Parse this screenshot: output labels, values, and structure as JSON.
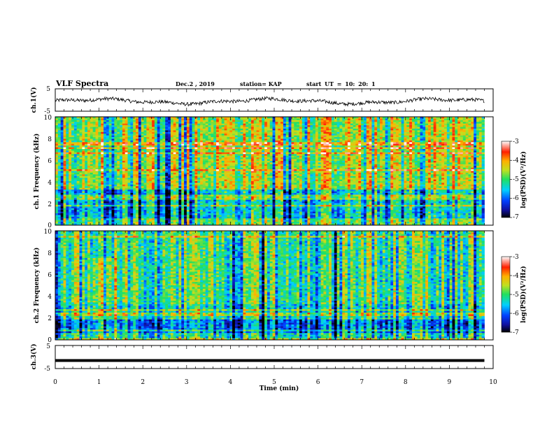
{
  "header": {
    "title": "VLF Spectra",
    "date": "Dec.2 , 2019",
    "station": "station= KAP",
    "start": "start UT = 10: 20: 1"
  },
  "colors": {
    "ink": "#000000",
    "background": "#ffffff"
  },
  "chart_data": [
    {
      "type": "line",
      "name": "ch1-waveform",
      "ylabel": "ch.1(V)",
      "ylim": [
        -5,
        5
      ],
      "yticks": [
        "5",
        "-5"
      ],
      "xlim": [
        0,
        10
      ],
      "description_values": "noisy waveform oscillating roughly between -2 and 1 V"
    },
    {
      "type": "heatmap",
      "name": "ch1-spectrogram",
      "ylabel": "ch.1 Frequency (kHz)",
      "ylim": [
        0,
        10
      ],
      "yticks": [
        "0",
        "2",
        "4",
        "6",
        "8",
        "10"
      ],
      "xlim": [
        0,
        9.8
      ],
      "colorbar": {
        "label": "log(PSD)(V²/Hz)",
        "range": [
          -7,
          -3
        ],
        "ticks": [
          "-3",
          "-4",
          "-5",
          "-6",
          "-7"
        ]
      }
    },
    {
      "type": "heatmap",
      "name": "ch2-spectrogram",
      "ylabel": "ch.2 Frequency (kHz)",
      "ylim": [
        0,
        10
      ],
      "yticks": [
        "0",
        "2",
        "4",
        "6",
        "8",
        "10"
      ],
      "xlim": [
        0,
        9.8
      ],
      "colorbar": {
        "label": "log(PSD)(V²/Hz)",
        "range": [
          -7,
          -3
        ],
        "ticks": [
          "-3",
          "-4",
          "-5",
          "-6",
          "-7"
        ]
      }
    },
    {
      "type": "line",
      "name": "ch3-waveform",
      "ylabel": "ch.3(V)",
      "ylim": [
        -5,
        5
      ],
      "yticks": [
        "5",
        "-5"
      ],
      "xlim": [
        0,
        10
      ],
      "values_constant": -1.5
    }
  ],
  "xaxis": {
    "label": "Time (min)",
    "ticks": [
      "0",
      "1",
      "2",
      "3",
      "4",
      "5",
      "6",
      "7",
      "8",
      "9",
      "10"
    ]
  }
}
